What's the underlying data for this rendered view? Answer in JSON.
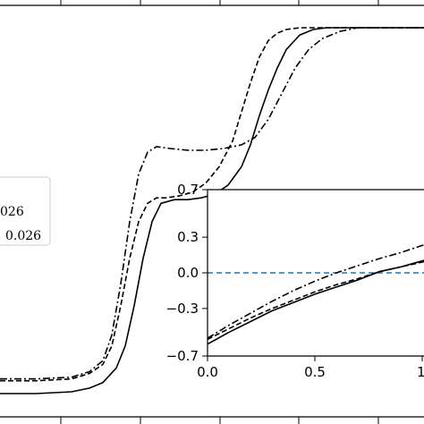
{
  "chart_data": [
    {
      "type": "line",
      "role": "main",
      "title": "",
      "xlabel": "",
      "ylabel": "",
      "grid": false,
      "legend": {
        "placement": "left",
        "entries_visible_text": [
          "026",
          "0.026"
        ]
      },
      "series": [
        {
          "style": "solid",
          "color": "#000000",
          "x": [
            0,
            40,
            80,
            100,
            115,
            130,
            140,
            150,
            160,
            170,
            180,
            195,
            210,
            225,
            240,
            255,
            270,
            280,
            290,
            300,
            310,
            320,
            335,
            350,
            365,
            380,
            400,
            420,
            474
          ],
          "y": [
            0.0,
            0.0,
            0.005,
            0.015,
            0.03,
            0.07,
            0.13,
            0.24,
            0.37,
            0.47,
            0.52,
            0.53,
            0.53,
            0.535,
            0.545,
            0.57,
            0.62,
            0.68,
            0.76,
            0.83,
            0.89,
            0.94,
            0.98,
            0.995,
            1.0,
            1.0,
            1.0,
            1.0,
            1.0
          ]
        },
        {
          "style": "dashed",
          "color": "#000000",
          "x": [
            0,
            40,
            80,
            100,
            115,
            125,
            135,
            145,
            155,
            165,
            175,
            185,
            200,
            215,
            230,
            245,
            260,
            270,
            280,
            290,
            300,
            310,
            320,
            335,
            350,
            370,
            400,
            474
          ],
          "y": [
            0.035,
            0.035,
            0.04,
            0.055,
            0.08,
            0.13,
            0.24,
            0.37,
            0.47,
            0.52,
            0.535,
            0.535,
            0.54,
            0.55,
            0.575,
            0.62,
            0.69,
            0.77,
            0.85,
            0.92,
            0.965,
            0.985,
            0.995,
            1.0,
            1.0,
            1.0,
            1.0,
            1.0
          ]
        },
        {
          "style": "dashdot",
          "color": "#000000",
          "x": [
            0,
            40,
            80,
            100,
            115,
            125,
            135,
            145,
            155,
            165,
            175,
            190,
            210,
            230,
            250,
            270,
            285,
            300,
            315,
            330,
            345,
            360,
            380,
            400,
            420,
            474
          ],
          "y": [
            0.04,
            0.04,
            0.045,
            0.06,
            0.09,
            0.16,
            0.3,
            0.47,
            0.6,
            0.66,
            0.675,
            0.67,
            0.665,
            0.665,
            0.67,
            0.68,
            0.7,
            0.75,
            0.82,
            0.89,
            0.94,
            0.97,
            0.99,
            1.0,
            1.0,
            1.0
          ]
        }
      ]
    },
    {
      "type": "line",
      "role": "inset",
      "title": "",
      "xlabel": "",
      "ylabel": "",
      "grid": false,
      "xlim": [
        0.0,
        1.05
      ],
      "ylim": [
        -0.7,
        0.7
      ],
      "x_ticks": [
        "0.0",
        "0.5",
        "1"
      ],
      "y_ticks": [
        "0.7",
        "0.3",
        "0.0",
        "−0.3",
        "−0.7"
      ],
      "y_tick_values": [
        0.7,
        0.3,
        0.0,
        -0.3,
        -0.7
      ],
      "x_tick_values": [
        0.0,
        0.5,
        1.0
      ],
      "reference_line": {
        "y": 0.0,
        "style": "dashed",
        "color": "#1f77b4"
      },
      "series": [
        {
          "style": "solid",
          "color": "#000000",
          "x": [
            0.0,
            0.1,
            0.2,
            0.3,
            0.4,
            0.5,
            0.6,
            0.7,
            0.8,
            0.9,
            1.0,
            1.05
          ],
          "y": [
            -0.6,
            -0.5,
            -0.41,
            -0.32,
            -0.25,
            -0.18,
            -0.12,
            -0.06,
            0.01,
            0.05,
            0.1,
            0.13
          ]
        },
        {
          "style": "dashed",
          "color": "#000000",
          "x": [
            0.0,
            0.1,
            0.2,
            0.3,
            0.4,
            0.5,
            0.6,
            0.7,
            0.8,
            0.9,
            1.0,
            1.05
          ],
          "y": [
            -0.56,
            -0.47,
            -0.38,
            -0.3,
            -0.23,
            -0.16,
            -0.1,
            -0.05,
            0.01,
            0.05,
            0.09,
            0.11
          ]
        },
        {
          "style": "dashdot",
          "color": "#000000",
          "x": [
            0.0,
            0.1,
            0.2,
            0.3,
            0.4,
            0.5,
            0.6,
            0.7,
            0.8,
            0.9,
            1.0,
            1.05
          ],
          "y": [
            -0.55,
            -0.44,
            -0.34,
            -0.24,
            -0.15,
            -0.07,
            0.0,
            0.06,
            0.12,
            0.17,
            0.23,
            0.26
          ]
        }
      ]
    }
  ]
}
